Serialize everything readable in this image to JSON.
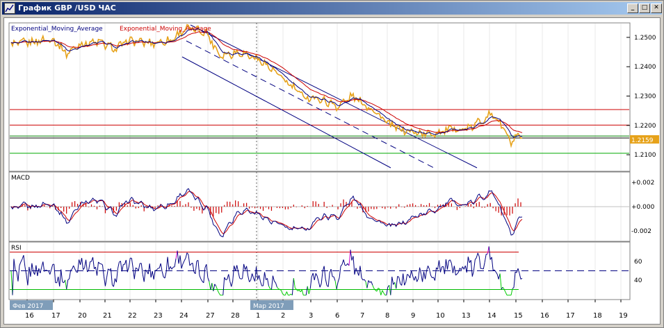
{
  "window": {
    "title": "График GBP /USD  ЧАС",
    "buttons": {
      "minimize": "_",
      "maximize": "□",
      "close": "✕"
    }
  },
  "chart_data": [
    {
      "type": "line",
      "panel": "price",
      "legend": {
        "ema1": "Exponential_Moving_Average",
        "ema2": "Exponential_Moving_Average"
      },
      "y_ticks": [
        "1.2500",
        "1.2400",
        "1.2300",
        "1.2200",
        "1.2100"
      ],
      "y_values": [
        1.25,
        1.24,
        1.23,
        1.22,
        1.21
      ],
      "ylim": [
        1.2046,
        1.2547
      ],
      "current_price": "1.2159",
      "horizontal_lines": [
        {
          "value": 1.2254,
          "color": "#cc0000"
        },
        {
          "value": 1.2201,
          "color": "#cc0000"
        },
        {
          "value": 1.2164,
          "color": "#008000"
        },
        {
          "value": 1.2157,
          "color": "#000000"
        },
        {
          "value": 1.2105,
          "color": "#00aa00"
        }
      ],
      "colors": {
        "price": "#e6a21a",
        "ema_fast": "#000080",
        "ema_slow": "#cc0000",
        "channel": "#000080"
      }
    },
    {
      "type": "bar",
      "panel": "macd",
      "legend": "MACD",
      "y_ticks": [
        "+0.002",
        "+0.000",
        "-0.002"
      ],
      "y_values": [
        0.002,
        0.0,
        -0.002
      ],
      "ylim": [
        -0.0028,
        0.0028
      ],
      "colors": {
        "histogram": "#cc0000",
        "macd": "#000080",
        "signal": "#cc0000"
      }
    },
    {
      "type": "line",
      "panel": "rsi",
      "legend": "RSI",
      "y_ticks": [
        "60",
        "40"
      ],
      "y_values": [
        60,
        40
      ],
      "ylim": [
        20,
        80
      ],
      "levels": [
        {
          "value": 70,
          "color": "#cc0000"
        },
        {
          "value": 50,
          "color": "#000080"
        },
        {
          "value": 30,
          "color": "#00bb00"
        }
      ],
      "colors": {
        "rsi": "#000080",
        "oversold": "#00cc00",
        "overbought": "#cc00cc"
      }
    }
  ],
  "x_axis": {
    "labels": [
      "16",
      "17",
      "20",
      "21",
      "22",
      "23",
      "24",
      "27",
      "28",
      "1",
      "2",
      "3",
      "6",
      "7",
      "8",
      "9",
      "10",
      "13",
      "14",
      "15",
      "16",
      "17",
      "18",
      "19"
    ],
    "month_labels": [
      "Фев 2017",
      "Мар 2017"
    ]
  }
}
